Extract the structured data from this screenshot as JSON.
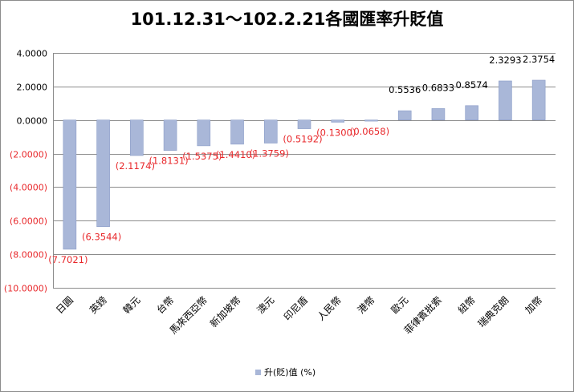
{
  "chart_data": {
    "type": "bar",
    "title": "101.12.31～102.2.21各國匯率升貶值",
    "categories": [
      "日圓",
      "英鎊",
      "韓元",
      "台幣",
      "馬來西亞幣",
      "新加坡幣",
      "澳元",
      "印尼盾",
      "人民幣",
      "港幣",
      "歐元",
      "菲律賓批索",
      "紐幣",
      "瑞典克朗",
      "加幣"
    ],
    "series": [
      {
        "name": "升(貶)值 (%)",
        "values": [
          -7.7021,
          -6.3544,
          -2.1174,
          -1.8131,
          -1.5375,
          -1.441,
          -1.3759,
          -0.5192,
          -0.13,
          -0.0658,
          0.5536,
          0.6833,
          0.8574,
          2.3293,
          2.3754
        ],
        "labels": [
          "(7.7021)",
          "(6.3544)",
          "(2.1174)",
          "(1.8131)",
          "(1.5375)",
          "(1.4410)",
          "(1.3759)",
          "(0.5192)",
          "(0.1300)",
          "(0.0658)",
          "0.5536",
          "0.6833",
          "0.8574",
          "2.3293",
          "2.3754"
        ]
      }
    ],
    "ylim": [
      -10,
      4
    ],
    "yticks": [
      4,
      2,
      0,
      -2,
      -4,
      -6,
      -8,
      -10
    ],
    "ytick_labels": [
      "4.0000",
      "2.0000",
      "0.0000",
      "(2.0000)",
      "(4.0000)",
      "(6.0000)",
      "(8.0000)",
      "(10.0000)"
    ],
    "grid": true,
    "legend_position": "bottom",
    "colors": {
      "bar": "#a9b7d8",
      "bar_edge": "#8a9cc7",
      "negative_text": "#e8282b",
      "positive_text": "#000000",
      "grid": "#8c8c8c"
    }
  }
}
